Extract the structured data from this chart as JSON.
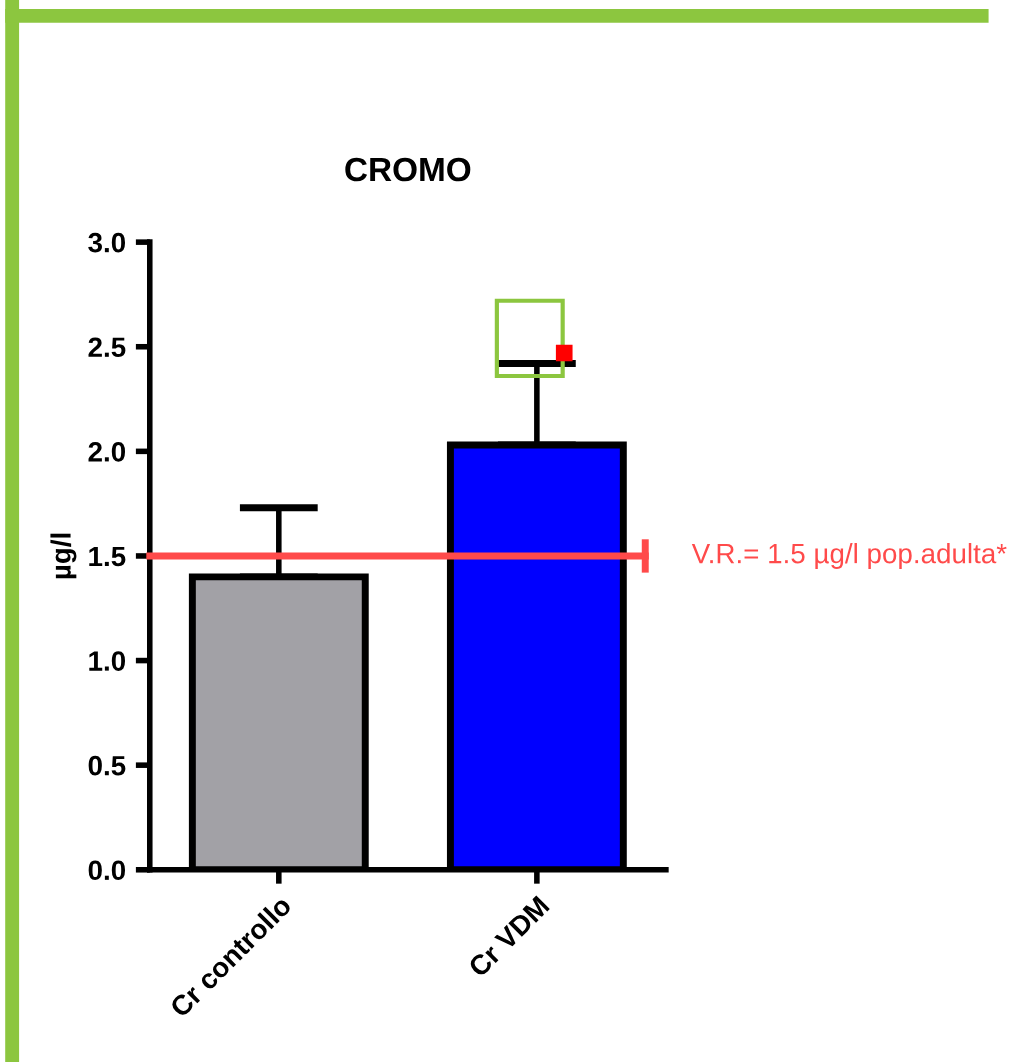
{
  "chart_data": {
    "type": "bar",
    "title": "CROMO",
    "ylabel": "µg/l",
    "categories": [
      "Cr controllo",
      "Cr VDM"
    ],
    "values": [
      1.4,
      2.03
    ],
    "colors": [
      "#a2a1a6",
      "#0000ff"
    ],
    "errors": [
      [
        1.4,
        1.73
      ],
      [
        2.03,
        2.42
      ]
    ],
    "ylim": [
      0,
      3.0
    ],
    "yticks": [
      {
        "value": 0,
        "label": "0.0"
      },
      0.5,
      {
        "value": 1,
        "label": "1.0"
      },
      1.5,
      {
        "value": 2,
        "label": "2.0"
      },
      2.5,
      {
        "value": 3,
        "label": "3.0"
      }
    ],
    "ref_lines": [
      {
        "axis": "y",
        "value": 1.5,
        "label": "V.R.= 1.5 µg/l pop.adulta*",
        "color": "#ff4a4a",
        "line_style": "solid"
      }
    ],
    "grid": false,
    "legend": false
  }
}
